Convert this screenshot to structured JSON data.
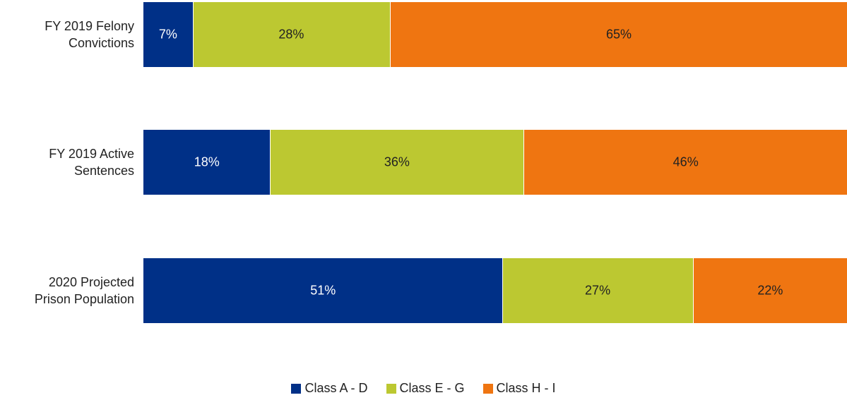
{
  "chart_data": {
    "type": "bar",
    "orientation": "horizontal",
    "stacked": true,
    "categories": [
      "FY 2019 Felony Convictions",
      "FY 2019 Active Sentences",
      "2020 Projected Prison Population"
    ],
    "category_lines": [
      [
        "FY 2019 Felony",
        "Convictions"
      ],
      [
        "FY 2019 Active",
        "Sentences"
      ],
      [
        "2020 Projected",
        "Prison Population"
      ]
    ],
    "series": [
      {
        "name": "Class A - D",
        "values": [
          7,
          18,
          51
        ],
        "labels": [
          "7%",
          "18%",
          "51%"
        ],
        "color": "#003087",
        "label_color": "#ffffff"
      },
      {
        "name": "Class E - G",
        "values": [
          28,
          36,
          27
        ],
        "labels": [
          "28%",
          "36%",
          "27%"
        ],
        "color": "#bcc831",
        "label_color": "#222222"
      },
      {
        "name": "Class H - I",
        "values": [
          65,
          46,
          22
        ],
        "labels": [
          "65%",
          "46%",
          "22%"
        ],
        "color": "#ef7511",
        "label_color": "#222222"
      }
    ],
    "xlim": [
      0,
      100
    ],
    "grid": false,
    "legend_position": "bottom"
  }
}
